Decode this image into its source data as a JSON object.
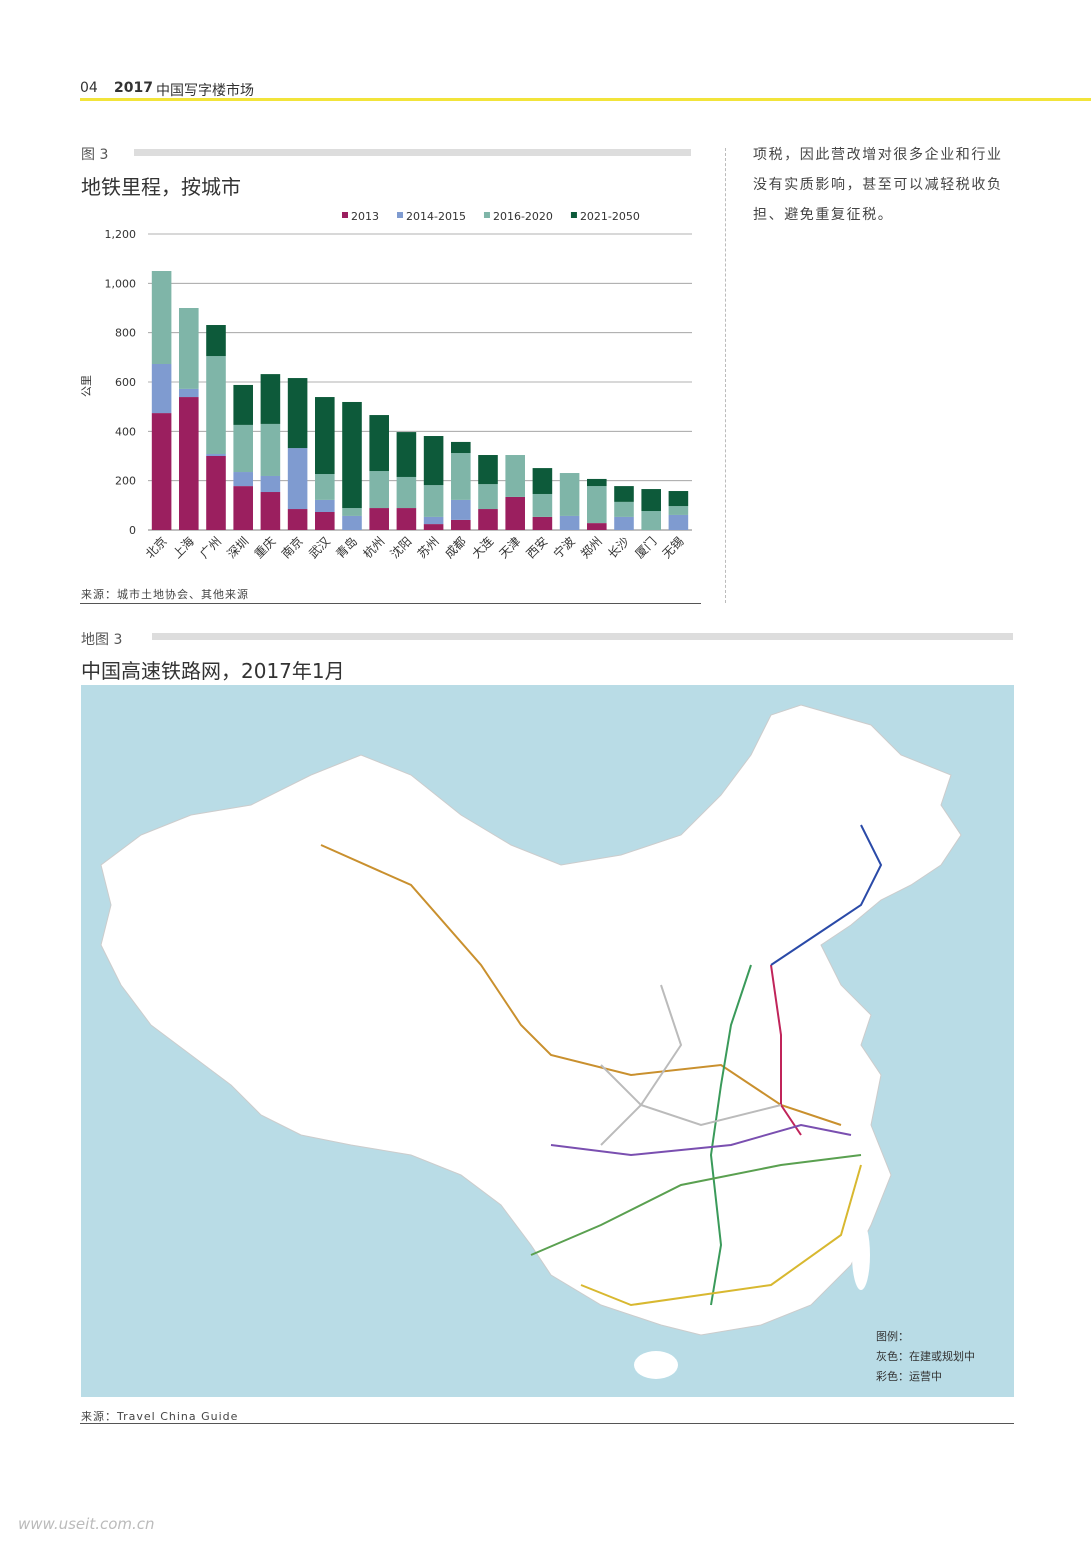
{
  "header": {
    "page": "04",
    "year": "2017",
    "title": "中国写字楼市场"
  },
  "figure": {
    "label": "图 3",
    "title": "地铁里程，按城市",
    "source": "来源：城市土地协会、其他来源"
  },
  "chart_data": {
    "type": "stacked_bar",
    "y_label": "公里",
    "categories": [
      "北京",
      "上海",
      "广州",
      "深圳",
      "重庆",
      "南京",
      "武汉",
      "青岛",
      "杭州",
      "沈阳",
      "苏州",
      "成都",
      "大连",
      "天津",
      "西安",
      "宁波",
      "郑州",
      "长沙",
      "厦门",
      "无锡"
    ],
    "series": [
      {
        "name": "2013",
        "color": "#9b1f5f",
        "values": [
          474,
          539,
          300,
          178,
          154,
          85,
          73,
          0,
          89,
          89,
          24,
          41,
          85,
          134,
          53,
          0,
          28,
          0,
          0,
          0
        ]
      },
      {
        "name": "2014-2015",
        "color": "#7f9bd0",
        "values": [
          199,
          33,
          8,
          57,
          65,
          247,
          49,
          57,
          0,
          0,
          29,
          81,
          0,
          0,
          0,
          57,
          0,
          53,
          0,
          61
        ]
      },
      {
        "name": "2016-2020",
        "color": "#7fb5a8",
        "values": [
          377,
          328,
          397,
          191,
          211,
          0,
          105,
          32,
          150,
          126,
          129,
          190,
          101,
          170,
          93,
          174,
          150,
          61,
          77,
          36
        ]
      },
      {
        "name": "2021-2050",
        "color": "#0d5a3a",
        "values": [
          0,
          0,
          126,
          162,
          202,
          284,
          312,
          430,
          227,
          182,
          199,
          45,
          118,
          0,
          105,
          0,
          29,
          64,
          89,
          61
        ]
      }
    ],
    "ylim": [
      0,
      1200
    ],
    "yticks": [
      0,
      200,
      400,
      600,
      800,
      {
        "value": 1000,
        "label": "1,000"
      },
      {
        "value": 1200,
        "label": "1,200"
      }
    ],
    "grid": true,
    "legend": "top"
  },
  "side_text": [
    "项税，因此营改增对很多企业和行业",
    "没有实质影响，甚至可以减轻税收负",
    "担、避免重复征税。"
  ],
  "map": {
    "label": "地图 3",
    "title": "中国高速铁路网，2017年1月",
    "legend_title": "图例：",
    "legend_gray": "灰色：在建或规划中",
    "legend_color": "彩色：运营中",
    "source": "来源：Travel China Guide"
  },
  "watermark": "www.useit.com.cn"
}
